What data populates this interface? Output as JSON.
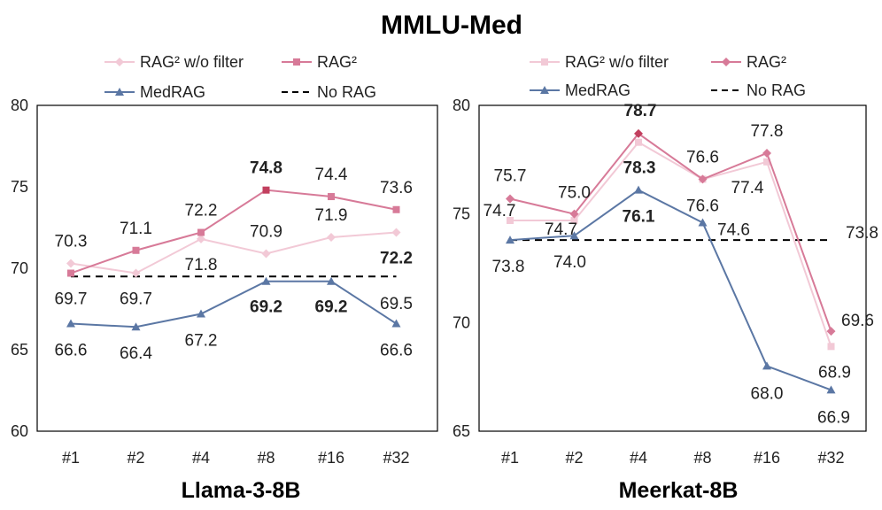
{
  "title": "MMLU-Med",
  "colors": {
    "rag2_wo_filter": "#f2c9d6",
    "rag2": "#d77a98",
    "medrag": "#5b77a4",
    "norag": "#000000",
    "axis": "#000000",
    "bold_marker": "#c2405f"
  },
  "chart_data": [
    {
      "type": "line",
      "title": "Llama-3-8B",
      "categories": [
        "#1",
        "#2",
        "#4",
        "#8",
        "#16",
        "#32"
      ],
      "ylim": [
        60,
        80
      ],
      "yticks": [
        60,
        65,
        70,
        75,
        80
      ],
      "grid": false,
      "legend_position": "top",
      "series": [
        {
          "key": "rag2_wo_filter",
          "name": "RAG² w/o filter",
          "marker": "diamond",
          "values": [
            70.3,
            69.7,
            71.8,
            70.9,
            71.9,
            72.2
          ],
          "labels": [
            "70.3",
            "69.7",
            "71.8",
            "70.9",
            "71.9",
            "72.2"
          ]
        },
        {
          "key": "rag2",
          "name": "RAG²",
          "marker": "square",
          "values": [
            69.7,
            71.1,
            72.2,
            74.8,
            74.4,
            73.6
          ],
          "labels": [
            "69.7",
            "71.1",
            "72.2",
            "74.8",
            "74.4",
            "73.6"
          ]
        },
        {
          "key": "medrag",
          "name": "MedRAG",
          "marker": "triangle",
          "values": [
            66.6,
            66.4,
            67.2,
            69.2,
            69.2,
            66.6
          ],
          "labels": [
            "66.6",
            "66.4",
            "67.2",
            "69.2",
            "69.2",
            "66.6"
          ]
        },
        {
          "key": "norag",
          "name": "No RAG",
          "marker": "none",
          "dashed": true,
          "values": [
            69.5,
            69.5,
            69.5,
            69.5,
            69.5,
            69.5
          ],
          "labels": [
            "",
            "",
            "",
            "",
            "",
            "69.5"
          ]
        }
      ]
    },
    {
      "type": "line",
      "title": "Meerkat-8B",
      "categories": [
        "#1",
        "#2",
        "#4",
        "#8",
        "#16",
        "#32"
      ],
      "ylim": [
        65,
        80
      ],
      "yticks": [
        65,
        70,
        75,
        80
      ],
      "grid": false,
      "legend_position": "top",
      "series": [
        {
          "key": "rag2_wo_filter",
          "name": "RAG² w/o filter",
          "marker": "square",
          "values": [
            74.7,
            74.7,
            78.3,
            76.6,
            77.4,
            68.9
          ],
          "labels": [
            "74.7",
            "74.7",
            "78.3",
            "76.6",
            "77.4",
            "68.9"
          ]
        },
        {
          "key": "rag2",
          "name": "RAG²",
          "marker": "diamond",
          "values": [
            75.7,
            75.0,
            78.7,
            76.6,
            77.8,
            69.6
          ],
          "labels": [
            "75.7",
            "75.0",
            "78.7",
            "76.6",
            "77.8",
            "69.6"
          ]
        },
        {
          "key": "medrag",
          "name": "MedRAG",
          "marker": "triangle",
          "values": [
            73.8,
            74.0,
            76.1,
            74.6,
            68.0,
            66.9
          ],
          "labels": [
            "73.8",
            "74.0",
            "76.1",
            "74.6",
            "68.0",
            "66.9"
          ]
        },
        {
          "key": "norag",
          "name": "No RAG",
          "marker": "none",
          "dashed": true,
          "values": [
            73.8,
            73.8,
            73.8,
            73.8,
            73.8,
            73.8
          ],
          "labels": [
            "",
            "",
            "",
            "",
            "",
            "73.8"
          ]
        }
      ]
    }
  ]
}
